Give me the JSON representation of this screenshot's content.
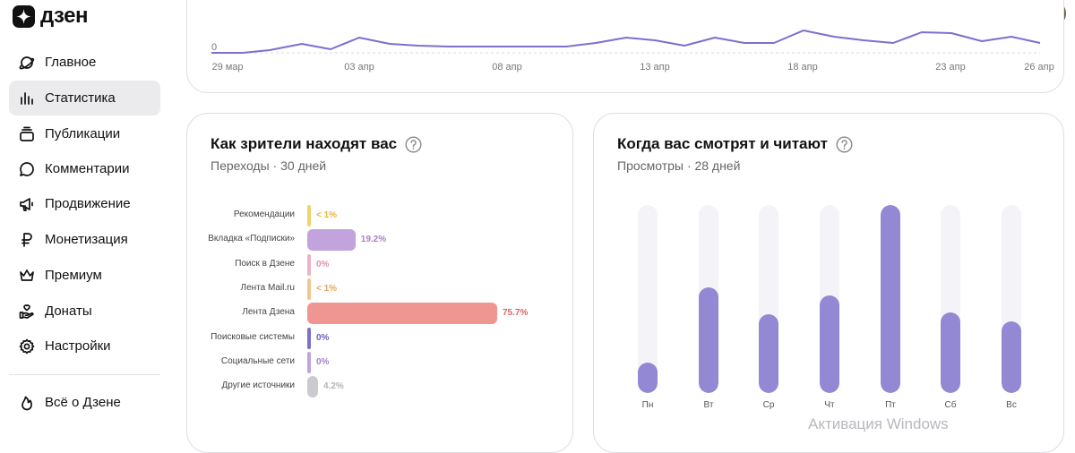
{
  "app": {
    "logo_text": "дзен",
    "logo_icon": "zen-star-icon"
  },
  "header": {
    "actions": [
      {
        "name": "add-publication-button",
        "icon": "plus-square-icon"
      },
      {
        "name": "notifications-button",
        "icon": "bell-icon"
      },
      {
        "name": "avatar",
        "icon": "user-avatar"
      }
    ]
  },
  "sidebar": {
    "items": [
      {
        "label": "Главное",
        "icon": "planet-icon",
        "active": false
      },
      {
        "label": "Статистика",
        "icon": "bar-chart-icon",
        "active": true
      },
      {
        "label": "Публикации",
        "icon": "stack-icon",
        "active": false
      },
      {
        "label": "Комментарии",
        "icon": "speech-bubble-icon",
        "active": false
      },
      {
        "label": "Продвижение",
        "icon": "megaphone-icon",
        "active": false
      },
      {
        "label": "Монетизация",
        "icon": "ruble-icon",
        "active": false
      },
      {
        "label": "Премиум",
        "icon": "crown-icon",
        "active": false
      },
      {
        "label": "Донаты",
        "icon": "donation-hand-icon",
        "active": false
      },
      {
        "label": "Настройки",
        "icon": "gear-icon",
        "active": false
      }
    ],
    "secondary": [
      {
        "label": "Всё о Дзене",
        "icon": "flame-icon"
      }
    ]
  },
  "views_chart": {
    "chart_data": {
      "type": "line",
      "y_tick": "0",
      "x_tick_labels": [
        "29 мар",
        "03 апр",
        "08 апр",
        "13 апр",
        "18 апр",
        "23 апр",
        "26 апр"
      ],
      "series_color": "#7c6fcf"
    }
  },
  "sources_card": {
    "title": "Как зрители находят вас",
    "subtitle": "Переходы · 30 дней",
    "chart_data": {
      "type": "bar",
      "orientation": "horizontal",
      "categories": [
        "Рекомендации",
        "Вкладка «Подписки»",
        "Поиск в Дзене",
        "Лента Mail.ru",
        "Лента Дзена",
        "Поисковые системы",
        "Социальные сети",
        "Другие источники"
      ],
      "values": [
        0.5,
        19.2,
        0,
        0.5,
        75.7,
        0,
        0,
        4.2
      ],
      "value_labels": [
        "< 1%",
        "19.2%",
        "0%",
        "< 1%",
        "75.7%",
        "0%",
        "0%",
        "4.2%"
      ],
      "colors": [
        "#f2d36b",
        "#c3a3dd",
        "#efb0c3",
        "#f3c58f",
        "#ef9693",
        "#7b70cc",
        "#c3a3dd",
        "#cbcbcf"
      ],
      "label_colors": [
        "#e6b83a",
        "#a77fcb",
        "#e391aa",
        "#eaa557",
        "#e0625f",
        "#6a5fbf",
        "#a77fcb",
        "#b4b4b8"
      ]
    }
  },
  "weekday_card": {
    "title": "Когда вас смотрят и читают",
    "subtitle": "Просмотры · 28 дней",
    "chart_data": {
      "type": "bar",
      "categories": [
        "Пн",
        "Вт",
        "Ср",
        "Чт",
        "Пт",
        "Сб",
        "Вс"
      ],
      "values": [
        16,
        56,
        42,
        52,
        100,
        43,
        38
      ],
      "ylim": [
        0,
        100
      ],
      "bar_color": "#9288d3",
      "track_color": "#f4f4f8"
    }
  },
  "watermark": "Активация Windows"
}
